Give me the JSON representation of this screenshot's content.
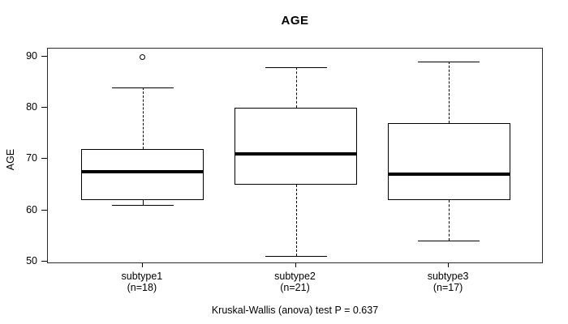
{
  "chart_data": {
    "type": "boxplot",
    "title": "AGE",
    "ylabel": "AGE",
    "ylim": [
      50,
      90
    ],
    "yticks": [
      50,
      60,
      70,
      80,
      90
    ],
    "grid": false,
    "legend": null,
    "groups": [
      {
        "label": "subtype1",
        "sublabel": "(n=18)",
        "n": 18,
        "whisker_low": 61,
        "q1": 62,
        "median": 67.5,
        "q3": 72,
        "whisker_high": 84,
        "outliers": [
          90
        ]
      },
      {
        "label": "subtype2",
        "sublabel": "(n=21)",
        "n": 21,
        "whisker_low": 51,
        "q1": 65,
        "median": 71,
        "q3": 80,
        "whisker_high": 88,
        "outliers": []
      },
      {
        "label": "subtype3",
        "sublabel": "(n=17)",
        "n": 17,
        "whisker_low": 54,
        "q1": 62,
        "median": 67,
        "q3": 77,
        "whisker_high": 89,
        "outliers": []
      }
    ],
    "annotation": "Kruskal-Wallis (anova) test P = 0.637",
    "line_color": "#000000",
    "background_color": "#ffffff"
  }
}
